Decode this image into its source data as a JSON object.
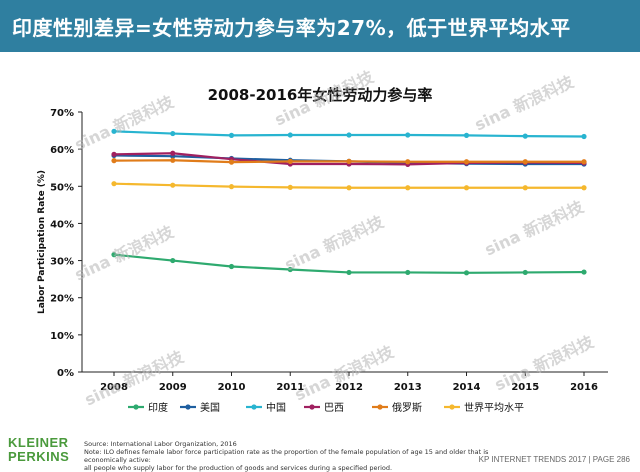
{
  "header": {
    "title": "印度性别差异=女性劳动力参与率为27%，低于世界平均水平"
  },
  "chart_title": "2008-2016年女性劳动力参与率",
  "footer": {
    "logo_line1": "KLEINER",
    "logo_line2": "PERKINS",
    "source_line1": "Source: International Labor Organization, 2016",
    "source_line2": "Note: ILO defines female labor force participation rate as the proportion of the female population of age 15 and older that is economically active:",
    "source_line3": "all people who supply labor for the production of goods and services during a specified period.",
    "right_text": "KP INTERNET TRENDS 2017  |  PAGE 286"
  },
  "watermark": "sina 新浪科技",
  "chart_data": {
    "type": "line",
    "title": "2008-2016年女性劳动力参与率",
    "xlabel": "",
    "ylabel": "Labor Participation Rate (%)",
    "x": [
      "2008",
      "2009",
      "2010",
      "2011",
      "2012",
      "2013",
      "2014",
      "2015",
      "2016"
    ],
    "y_ticks": [
      "0%",
      "10%",
      "20%",
      "30%",
      "40%",
      "50%",
      "60%",
      "70%"
    ],
    "ylim": [
      0,
      70
    ],
    "grid": false,
    "legend_position": "bottom",
    "series": [
      {
        "name": "印度",
        "color": "#2eaa6f",
        "values": [
          31.6,
          30.0,
          28.4,
          27.6,
          26.8,
          26.8,
          26.7,
          26.8,
          26.9
        ]
      },
      {
        "name": "美国",
        "color": "#1f5fa0",
        "values": [
          58.3,
          58.1,
          57.5,
          57.0,
          56.7,
          56.3,
          56.1,
          56.0,
          56.0
        ]
      },
      {
        "name": "中国",
        "color": "#28b4d0",
        "values": [
          64.8,
          64.2,
          63.7,
          63.8,
          63.8,
          63.8,
          63.7,
          63.5,
          63.4
        ]
      },
      {
        "name": "巴西",
        "color": "#a02060",
        "values": [
          58.6,
          58.9,
          57.3,
          56.0,
          56.0,
          55.9,
          56.3,
          56.4,
          56.3
        ]
      },
      {
        "name": "俄罗斯",
        "color": "#e07c1a",
        "values": [
          56.9,
          57.0,
          56.5,
          56.7,
          56.7,
          56.6,
          56.6,
          56.6,
          56.6
        ]
      },
      {
        "name": "世界平均水平",
        "color": "#f5b82e",
        "values": [
          50.7,
          50.3,
          49.9,
          49.7,
          49.6,
          49.6,
          49.6,
          49.6,
          49.6
        ]
      }
    ]
  }
}
